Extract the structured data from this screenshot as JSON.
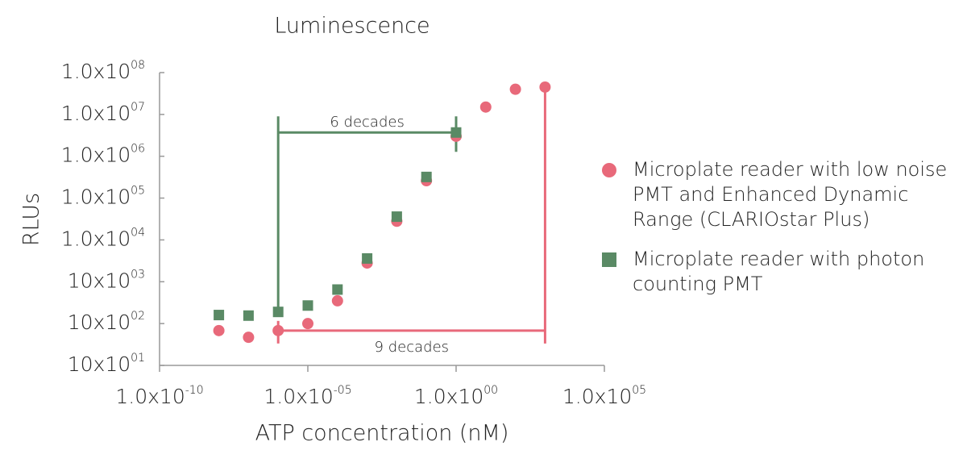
{
  "chart_data": {
    "type": "scatter",
    "title": "Luminescence",
    "x_label": "ATP concentration (nM)",
    "y_label": "RLUs",
    "x_scale": "log",
    "y_scale": "log",
    "xlim": [
      1e-10,
      100000
    ],
    "ylim": [
      10,
      100000000
    ],
    "xticks": [
      {
        "value": 1e-10,
        "label": "1.0x10",
        "label_sup": "-10"
      },
      {
        "value": 1e-05,
        "label": "1.0x10",
        "label_sup": "-05"
      },
      {
        "value": 1,
        "label": "1.0x10",
        "label_sup": "00"
      },
      {
        "value": 100000,
        "label": "1.0x10",
        "label_sup": "05"
      }
    ],
    "yticks": [
      {
        "value": 100000000,
        "label": "1.0x10",
        "label_sup": "08"
      },
      {
        "value": 10000000,
        "label": "1.0x10",
        "label_sup": "07"
      },
      {
        "value": 1000000,
        "label": "1.0x10",
        "label_sup": "06"
      },
      {
        "value": 100000,
        "label": "1.0x10",
        "label_sup": "05"
      },
      {
        "value": 10000,
        "label": "1.0x10",
        "label_sup": "04"
      },
      {
        "value": 1000,
        "label": "10x10",
        "label_sup": "03"
      },
      {
        "value": 100,
        "label": "10x10",
        "label_sup": "02"
      },
      {
        "value": 10,
        "label": "10x10",
        "label_sup": "01"
      }
    ],
    "series": [
      {
        "name": "Microplate reader with low noise PMT and Enhanced Dynamic Range (CLARIOstar Plus)",
        "color": "#e8697a",
        "marker": "circle",
        "x": [
          1e-08,
          1e-07,
          1e-06,
          1e-05,
          0.0001,
          0.001,
          0.01,
          0.1,
          1,
          10,
          100,
          1000
        ],
        "values": [
          68,
          47,
          68,
          100,
          350,
          2800,
          28000,
          260000,
          3000000,
          15000000,
          40000000,
          45000000
        ]
      },
      {
        "name": "Microplate reader with photon counting PMT",
        "color": "#5a8a65",
        "marker": "square",
        "x": [
          1e-08,
          1e-07,
          1e-06,
          1e-05,
          0.0001,
          0.001,
          0.01,
          0.1,
          1
        ],
        "values": [
          160,
          155,
          190,
          270,
          650,
          3600,
          36000,
          320000,
          3700000
        ]
      }
    ],
    "annotations": [
      "6 decades",
      "9 decades"
    ],
    "legend": "right"
  }
}
